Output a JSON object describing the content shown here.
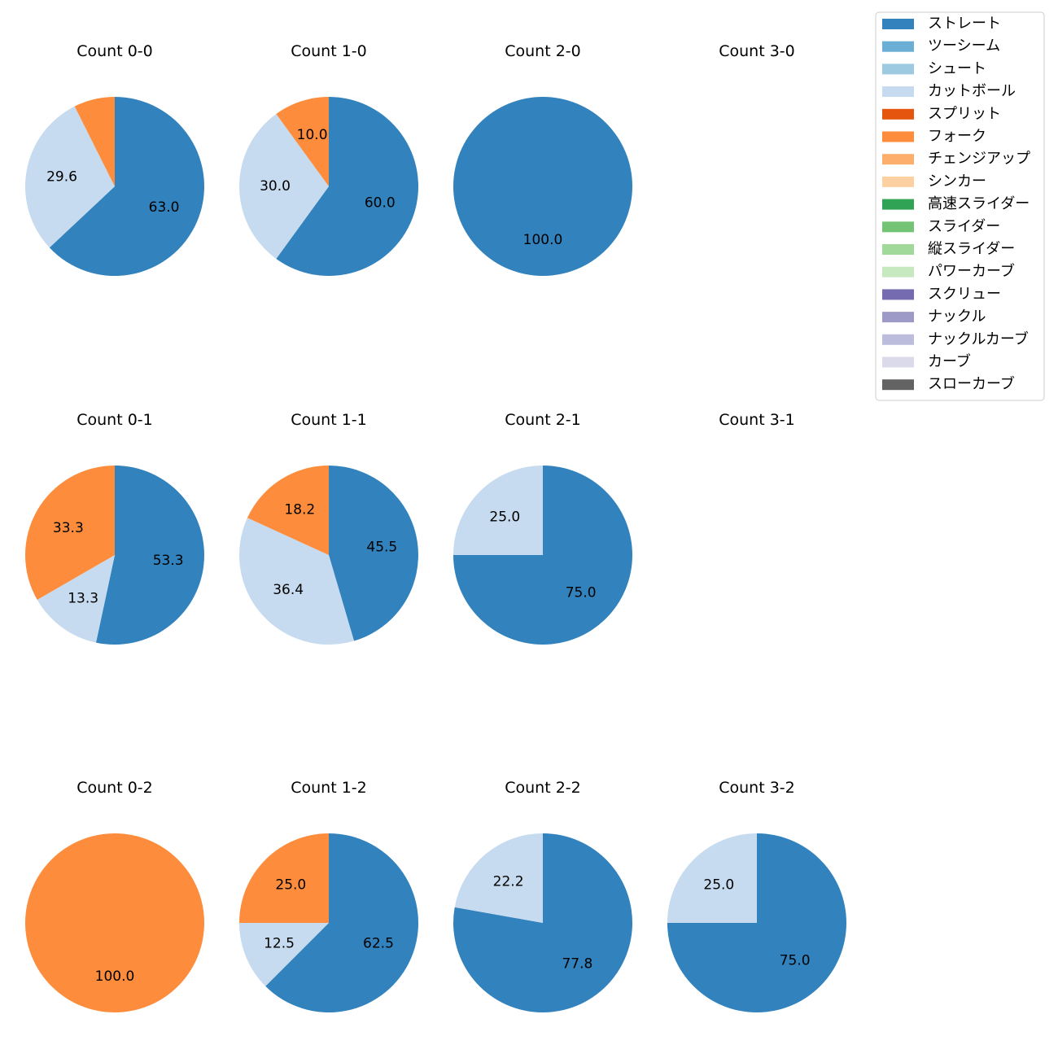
{
  "chart_data": {
    "type": "pie",
    "legend": {
      "position": "top-right",
      "entries": [
        {
          "name": "ストレート",
          "color": "#3182bd"
        },
        {
          "name": "ツーシーム",
          "color": "#6baed6"
        },
        {
          "name": "シュート",
          "color": "#9ecae1"
        },
        {
          "name": "カットボール",
          "color": "#c6dbef"
        },
        {
          "name": "スプリット",
          "color": "#e6550d"
        },
        {
          "name": "フォーク",
          "color": "#fd8d3c"
        },
        {
          "name": "チェンジアップ",
          "color": "#fdae6b"
        },
        {
          "name": "シンカー",
          "color": "#fdd0a2"
        },
        {
          "name": "高速スライダー",
          "color": "#31a354"
        },
        {
          "name": "スライダー",
          "color": "#74c476"
        },
        {
          "name": "縦スライダー",
          "color": "#a1d99b"
        },
        {
          "name": "パワーカーブ",
          "color": "#c7e9c0"
        },
        {
          "name": "スクリュー",
          "color": "#756bb1"
        },
        {
          "name": "ナックル",
          "color": "#9e9ac8"
        },
        {
          "name": "ナックルカーブ",
          "color": "#bcbddc"
        },
        {
          "name": "カーブ",
          "color": "#dadaeb"
        },
        {
          "name": "スローカーブ",
          "color": "#636363"
        }
      ]
    },
    "charts": [
      {
        "title": "Count 0-0",
        "slices": [
          {
            "name": "ストレート",
            "value": 63.0,
            "label": "63.0"
          },
          {
            "name": "カットボール",
            "value": 29.6,
            "label": "29.6"
          },
          {
            "name": "フォーク",
            "value": 7.4,
            "label": ""
          }
        ]
      },
      {
        "title": "Count 1-0",
        "slices": [
          {
            "name": "ストレート",
            "value": 60.0,
            "label": "60.0"
          },
          {
            "name": "カットボール",
            "value": 30.0,
            "label": "30.0"
          },
          {
            "name": "フォーク",
            "value": 10.0,
            "label": "10.0"
          }
        ]
      },
      {
        "title": "Count 2-0",
        "slices": [
          {
            "name": "ストレート",
            "value": 100.0,
            "label": "100.0"
          }
        ]
      },
      {
        "title": "Count 3-0",
        "slices": []
      },
      {
        "title": "Count 0-1",
        "slices": [
          {
            "name": "ストレート",
            "value": 53.3,
            "label": "53.3"
          },
          {
            "name": "カットボール",
            "value": 13.3,
            "label": "13.3"
          },
          {
            "name": "フォーク",
            "value": 33.3,
            "label": "33.3"
          }
        ]
      },
      {
        "title": "Count 1-1",
        "slices": [
          {
            "name": "ストレート",
            "value": 45.5,
            "label": "45.5"
          },
          {
            "name": "カットボール",
            "value": 36.4,
            "label": "36.4"
          },
          {
            "name": "フォーク",
            "value": 18.2,
            "label": "18.2"
          }
        ]
      },
      {
        "title": "Count 2-1",
        "slices": [
          {
            "name": "ストレート",
            "value": 75.0,
            "label": "75.0"
          },
          {
            "name": "カットボール",
            "value": 25.0,
            "label": "25.0"
          }
        ]
      },
      {
        "title": "Count 3-1",
        "slices": []
      },
      {
        "title": "Count 0-2",
        "slices": [
          {
            "name": "フォーク",
            "value": 100.0,
            "label": "100.0"
          }
        ]
      },
      {
        "title": "Count 1-2",
        "slices": [
          {
            "name": "ストレート",
            "value": 62.5,
            "label": "62.5"
          },
          {
            "name": "カットボール",
            "value": 12.5,
            "label": "12.5"
          },
          {
            "name": "フォーク",
            "value": 25.0,
            "label": "25.0"
          }
        ]
      },
      {
        "title": "Count 2-2",
        "slices": [
          {
            "name": "ストレート",
            "value": 77.8,
            "label": "77.8"
          },
          {
            "name": "カットボール",
            "value": 22.2,
            "label": "22.2"
          }
        ]
      },
      {
        "title": "Count 3-2",
        "slices": [
          {
            "name": "ストレート",
            "value": 75.0,
            "label": "75.0"
          },
          {
            "name": "カットボール",
            "value": 25.0,
            "label": "25.0"
          }
        ]
      }
    ]
  }
}
